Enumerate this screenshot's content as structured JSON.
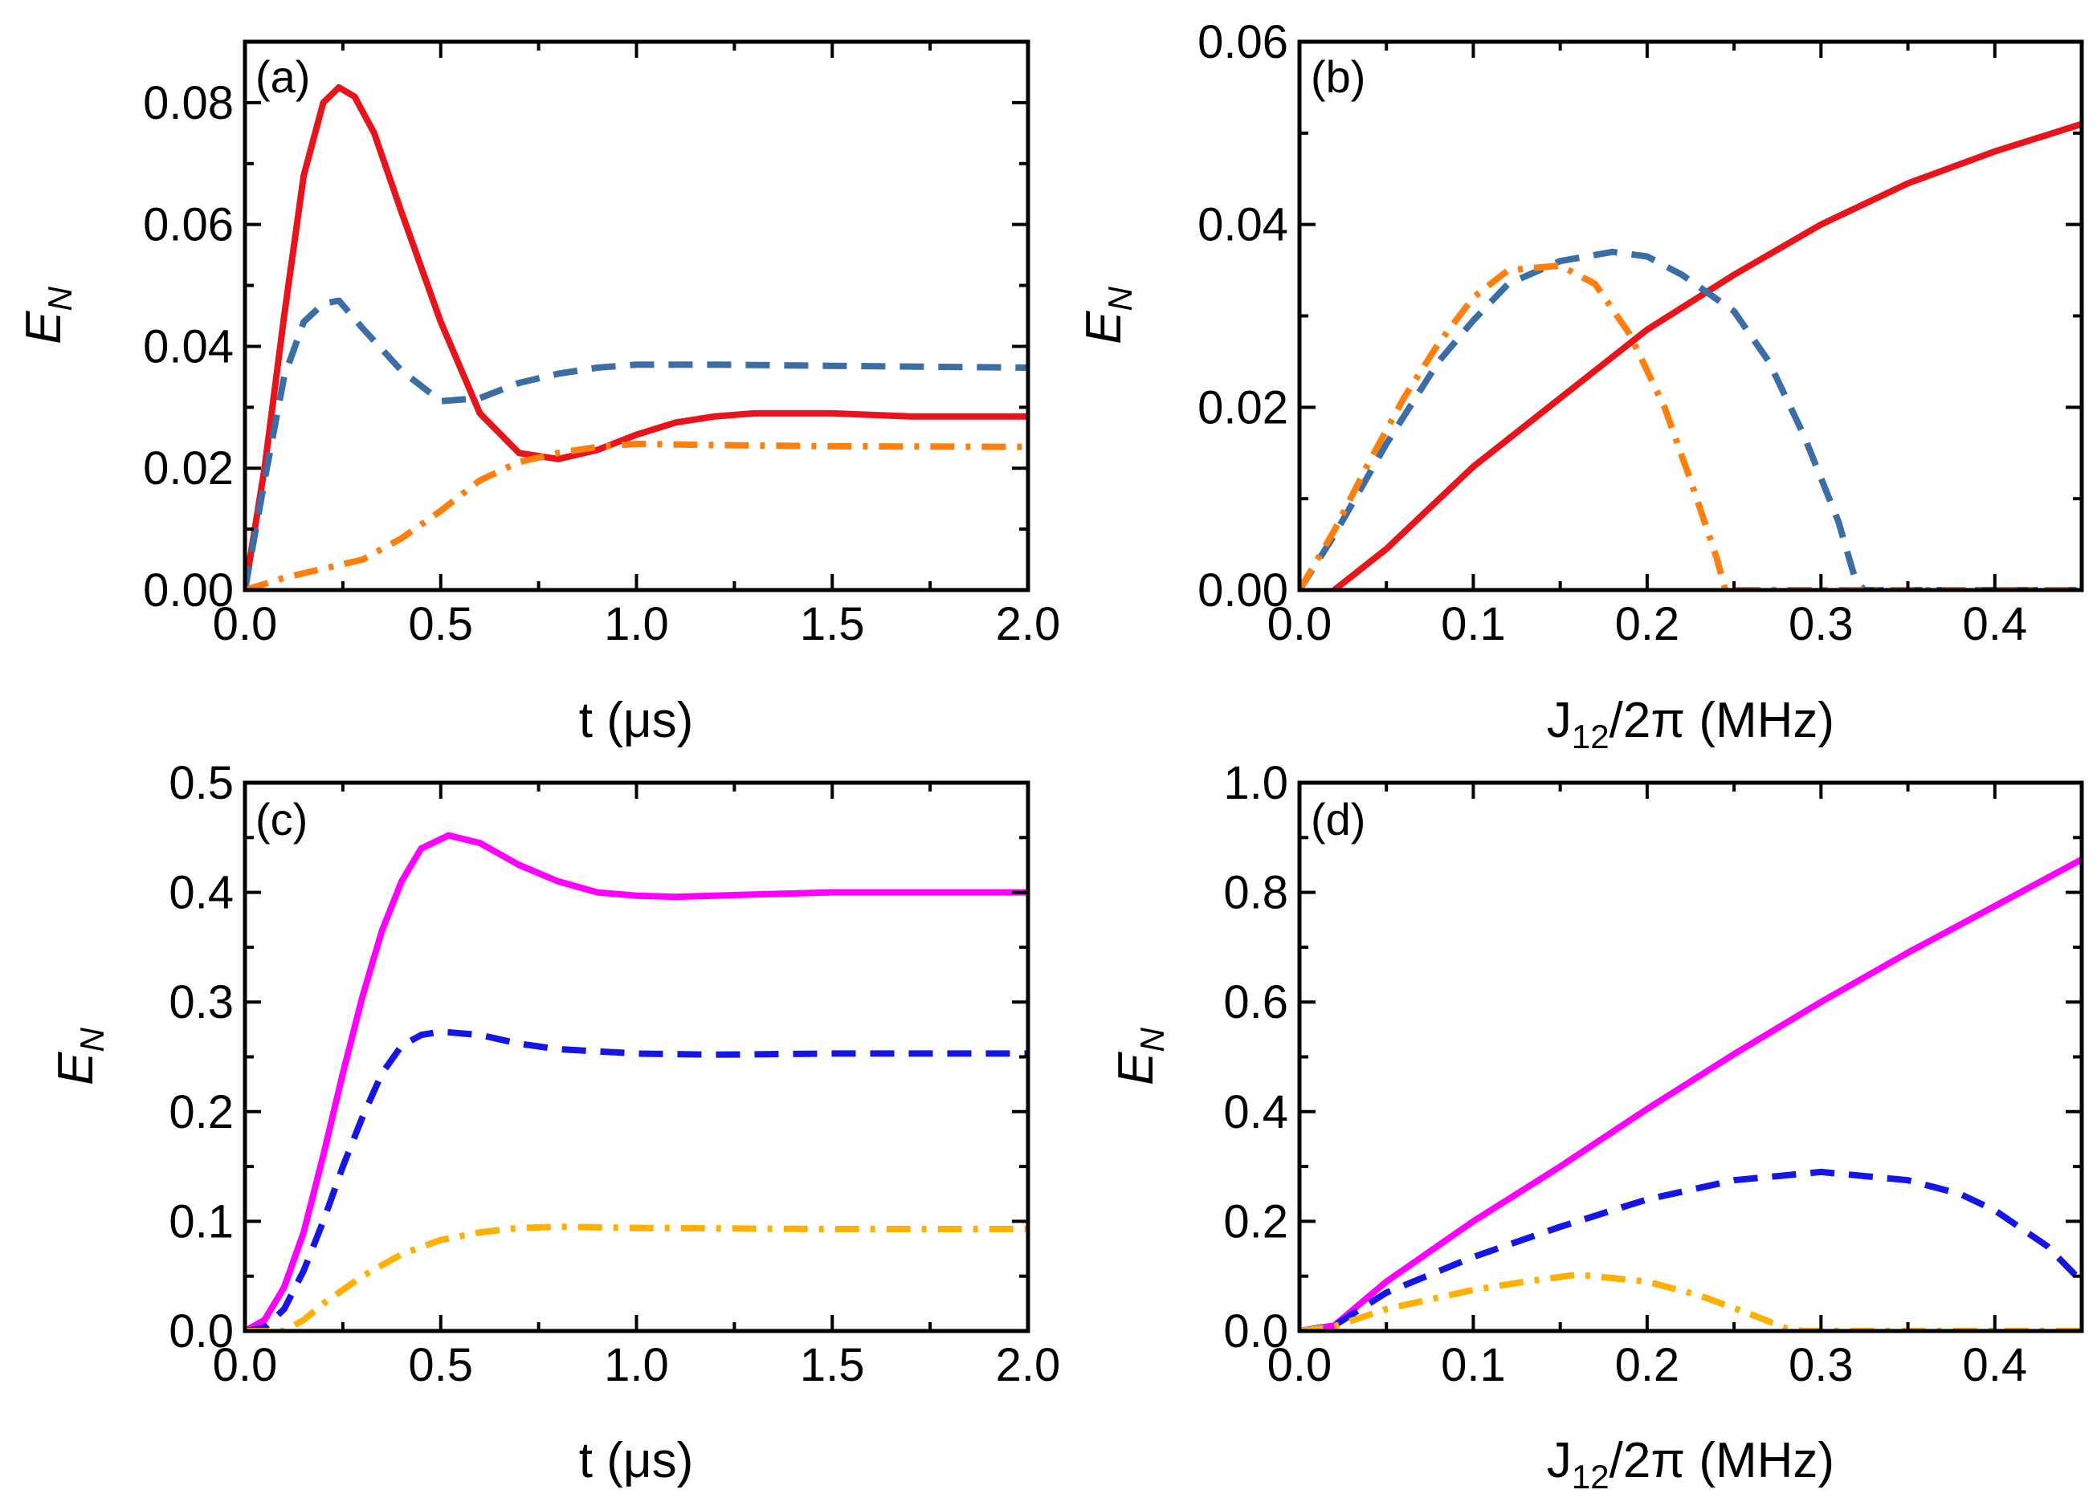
{
  "chart_data": [
    {
      "panel": "(a)",
      "type": "line",
      "xlabel": "t (μs)",
      "ylabel": "E",
      "ylabel_sub": "N",
      "xlim": [
        0,
        2.0
      ],
      "ylim": [
        0,
        0.09
      ],
      "xticks": [
        0,
        0.5,
        1.0,
        1.5,
        2.0
      ],
      "xtick_labels": [
        "0.0",
        "0.5",
        "1.0",
        "1.5",
        "2.0"
      ],
      "yticks": [
        0,
        0.02,
        0.04,
        0.06,
        0.08
      ],
      "ytick_labels": [
        "0.00",
        "0.02",
        "0.04",
        "0.06",
        "0.08"
      ],
      "grid": false,
      "series": [
        {
          "color": "#e8141c",
          "style": "solid",
          "points": [
            [
              0,
              0
            ],
            [
              0.05,
              0.02
            ],
            [
              0.1,
              0.045
            ],
            [
              0.15,
              0.068
            ],
            [
              0.2,
              0.08
            ],
            [
              0.24,
              0.0825
            ],
            [
              0.28,
              0.081
            ],
            [
              0.33,
              0.075
            ],
            [
              0.4,
              0.062
            ],
            [
              0.5,
              0.044
            ],
            [
              0.6,
              0.029
            ],
            [
              0.7,
              0.0225
            ],
            [
              0.8,
              0.0215
            ],
            [
              0.9,
              0.023
            ],
            [
              1.0,
              0.0255
            ],
            [
              1.1,
              0.0275
            ],
            [
              1.2,
              0.0285
            ],
            [
              1.3,
              0.029
            ],
            [
              1.5,
              0.029
            ],
            [
              1.7,
              0.0285
            ],
            [
              2.0,
              0.0285
            ]
          ]
        },
        {
          "color": "#3a6ea5",
          "style": "dashed",
          "points": [
            [
              0,
              0
            ],
            [
              0.05,
              0.018
            ],
            [
              0.1,
              0.035
            ],
            [
              0.15,
              0.044
            ],
            [
              0.2,
              0.047
            ],
            [
              0.24,
              0.0475
            ],
            [
              0.3,
              0.043
            ],
            [
              0.4,
              0.036
            ],
            [
              0.5,
              0.031
            ],
            [
              0.6,
              0.0315
            ],
            [
              0.7,
              0.034
            ],
            [
              0.8,
              0.0355
            ],
            [
              0.9,
              0.0365
            ],
            [
              1.0,
              0.037
            ],
            [
              1.2,
              0.037
            ],
            [
              1.5,
              0.0368
            ],
            [
              2.0,
              0.0365
            ]
          ]
        },
        {
          "color": "#ff7f0e",
          "style": "dashdot",
          "points": [
            [
              0,
              0
            ],
            [
              0.1,
              0.002
            ],
            [
              0.2,
              0.0035
            ],
            [
              0.3,
              0.005
            ],
            [
              0.4,
              0.0085
            ],
            [
              0.5,
              0.013
            ],
            [
              0.6,
              0.018
            ],
            [
              0.7,
              0.021
            ],
            [
              0.8,
              0.0225
            ],
            [
              0.9,
              0.0235
            ],
            [
              1.0,
              0.024
            ],
            [
              1.2,
              0.0238
            ],
            [
              1.5,
              0.0236
            ],
            [
              2.0,
              0.0235
            ]
          ]
        }
      ]
    },
    {
      "panel": "(b)",
      "type": "line",
      "xlabel": "J",
      "xlabel_sub": "12",
      "xlabel_tail": "/2π (MHz)",
      "ylabel": "E",
      "ylabel_sub": "N",
      "xlim": [
        0,
        0.45
      ],
      "ylim": [
        0,
        0.06
      ],
      "xticks": [
        0,
        0.1,
        0.2,
        0.3,
        0.4
      ],
      "xtick_labels": [
        "0.0",
        "0.1",
        "0.2",
        "0.3",
        "0.4"
      ],
      "yticks": [
        0,
        0.02,
        0.04,
        0.06
      ],
      "ytick_labels": [
        "0.00",
        "0.02",
        "0.04",
        "0.06"
      ],
      "grid": false,
      "series": [
        {
          "color": "#e8141c",
          "style": "solid",
          "points": [
            [
              0.02,
              0
            ],
            [
              0.05,
              0.0045
            ],
            [
              0.1,
              0.0135
            ],
            [
              0.15,
              0.021
            ],
            [
              0.2,
              0.0285
            ],
            [
              0.25,
              0.0345
            ],
            [
              0.3,
              0.04
            ],
            [
              0.35,
              0.0445
            ],
            [
              0.4,
              0.048
            ],
            [
              0.45,
              0.051
            ]
          ]
        },
        {
          "color": "#3a6ea5",
          "style": "dashed",
          "points": [
            [
              0.0,
              0
            ],
            [
              0.02,
              0.006
            ],
            [
              0.05,
              0.016
            ],
            [
              0.08,
              0.025
            ],
            [
              0.1,
              0.0295
            ],
            [
              0.12,
              0.0335
            ],
            [
              0.15,
              0.036
            ],
            [
              0.18,
              0.037
            ],
            [
              0.2,
              0.0365
            ],
            [
              0.22,
              0.0345
            ],
            [
              0.25,
              0.0305
            ],
            [
              0.27,
              0.025
            ],
            [
              0.29,
              0.017
            ],
            [
              0.31,
              0.0075
            ],
            [
              0.32,
              0.001
            ],
            [
              0.325,
              0
            ],
            [
              0.45,
              0
            ]
          ]
        },
        {
          "color": "#ff7f0e",
          "style": "dashdot",
          "points": [
            [
              0.0,
              0
            ],
            [
              0.02,
              0.0065
            ],
            [
              0.04,
              0.014
            ],
            [
              0.06,
              0.021
            ],
            [
              0.08,
              0.027
            ],
            [
              0.1,
              0.032
            ],
            [
              0.12,
              0.035
            ],
            [
              0.15,
              0.0355
            ],
            [
              0.17,
              0.0335
            ],
            [
              0.19,
              0.028
            ],
            [
              0.21,
              0.02
            ],
            [
              0.225,
              0.012
            ],
            [
              0.24,
              0.0035
            ],
            [
              0.245,
              0
            ],
            [
              0.45,
              0
            ]
          ]
        }
      ]
    },
    {
      "panel": "(c)",
      "type": "line",
      "xlabel": "t (μs)",
      "ylabel": "E",
      "ylabel_sub": "N",
      "xlim": [
        0,
        2.0
      ],
      "ylim": [
        0,
        0.5
      ],
      "xticks": [
        0,
        0.5,
        1.0,
        1.5,
        2.0
      ],
      "xtick_labels": [
        "0.0",
        "0.5",
        "1.0",
        "1.5",
        "2.0"
      ],
      "yticks": [
        0,
        0.1,
        0.2,
        0.3,
        0.4,
        0.5
      ],
      "ytick_labels": [
        "0.0",
        "0.1",
        "0.2",
        "0.3",
        "0.4",
        "0.5"
      ],
      "grid": false,
      "series": [
        {
          "color": "#ff00ff",
          "style": "solid",
          "points": [
            [
              0,
              0
            ],
            [
              0.05,
              0.01
            ],
            [
              0.1,
              0.04
            ],
            [
              0.15,
              0.09
            ],
            [
              0.2,
              0.16
            ],
            [
              0.25,
              0.235
            ],
            [
              0.3,
              0.305
            ],
            [
              0.35,
              0.365
            ],
            [
              0.4,
              0.41
            ],
            [
              0.45,
              0.44
            ],
            [
              0.52,
              0.452
            ],
            [
              0.6,
              0.445
            ],
            [
              0.7,
              0.425
            ],
            [
              0.8,
              0.41
            ],
            [
              0.9,
              0.4
            ],
            [
              1.0,
              0.397
            ],
            [
              1.1,
              0.396
            ],
            [
              1.3,
              0.398
            ],
            [
              1.5,
              0.4
            ],
            [
              2.0,
              0.4
            ]
          ]
        },
        {
          "color": "#1515e6",
          "style": "dashed",
          "points": [
            [
              0,
              0
            ],
            [
              0.05,
              0.003
            ],
            [
              0.1,
              0.02
            ],
            [
              0.15,
              0.055
            ],
            [
              0.2,
              0.1
            ],
            [
              0.25,
              0.15
            ],
            [
              0.3,
              0.195
            ],
            [
              0.35,
              0.235
            ],
            [
              0.4,
              0.26
            ],
            [
              0.45,
              0.27
            ],
            [
              0.5,
              0.273
            ],
            [
              0.6,
              0.27
            ],
            [
              0.7,
              0.262
            ],
            [
              0.8,
              0.257
            ],
            [
              1.0,
              0.253
            ],
            [
              1.2,
              0.252
            ],
            [
              1.5,
              0.253
            ],
            [
              2.0,
              0.253
            ]
          ]
        },
        {
          "color": "#ffb000",
          "style": "dashdot",
          "points": [
            [
              0,
              0
            ],
            [
              0.1,
              0
            ],
            [
              0.15,
              0.01
            ],
            [
              0.2,
              0.025
            ],
            [
              0.3,
              0.05
            ],
            [
              0.4,
              0.07
            ],
            [
              0.5,
              0.083
            ],
            [
              0.6,
              0.09
            ],
            [
              0.7,
              0.094
            ],
            [
              0.8,
              0.095
            ],
            [
              1.0,
              0.094
            ],
            [
              1.5,
              0.093
            ],
            [
              2.0,
              0.093
            ]
          ]
        }
      ]
    },
    {
      "panel": "(d)",
      "type": "line",
      "xlabel": "J",
      "xlabel_sub": "12",
      "xlabel_tail": "/2π (MHz)",
      "ylabel": "E",
      "ylabel_sub": "N",
      "xlim": [
        0,
        0.45
      ],
      "ylim": [
        0,
        1.0
      ],
      "xticks": [
        0,
        0.1,
        0.2,
        0.3,
        0.4
      ],
      "xtick_labels": [
        "0.0",
        "0.1",
        "0.2",
        "0.3",
        "0.4"
      ],
      "yticks": [
        0,
        0.2,
        0.4,
        0.6,
        0.8,
        1.0
      ],
      "ytick_labels": [
        "0.0",
        "0.2",
        "0.4",
        "0.6",
        "0.8",
        "1.0"
      ],
      "grid": false,
      "series": [
        {
          "color": "#ff00ff",
          "style": "solid",
          "points": [
            [
              0.0,
              0
            ],
            [
              0.02,
              0.01
            ],
            [
              0.05,
              0.09
            ],
            [
              0.1,
              0.2
            ],
            [
              0.15,
              0.3
            ],
            [
              0.2,
              0.405
            ],
            [
              0.25,
              0.505
            ],
            [
              0.3,
              0.6
            ],
            [
              0.35,
              0.69
            ],
            [
              0.4,
              0.775
            ],
            [
              0.45,
              0.86
            ]
          ]
        },
        {
          "color": "#1515e6",
          "style": "dashed",
          "points": [
            [
              0.0,
              0
            ],
            [
              0.02,
              0.01
            ],
            [
              0.05,
              0.07
            ],
            [
              0.1,
              0.135
            ],
            [
              0.15,
              0.19
            ],
            [
              0.2,
              0.24
            ],
            [
              0.25,
              0.275
            ],
            [
              0.3,
              0.29
            ],
            [
              0.35,
              0.275
            ],
            [
              0.38,
              0.25
            ],
            [
              0.4,
              0.22
            ],
            [
              0.43,
              0.155
            ],
            [
              0.45,
              0.09
            ]
          ]
        },
        {
          "color": "#ffb000",
          "style": "dashdot",
          "points": [
            [
              0.0,
              0
            ],
            [
              0.02,
              0.008
            ],
            [
              0.05,
              0.04
            ],
            [
              0.1,
              0.075
            ],
            [
              0.13,
              0.09
            ],
            [
              0.16,
              0.103
            ],
            [
              0.2,
              0.09
            ],
            [
              0.23,
              0.065
            ],
            [
              0.26,
              0.03
            ],
            [
              0.28,
              0.005
            ],
            [
              0.29,
              0
            ],
            [
              0.45,
              0
            ]
          ]
        }
      ]
    }
  ]
}
